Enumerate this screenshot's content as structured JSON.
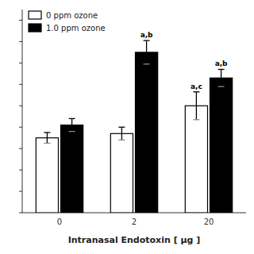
{
  "chart_data": {
    "type": "bar",
    "xlabel": "Intranasal Endotoxin [ μg ]",
    "categories": [
      "0",
      "2",
      "20"
    ],
    "series": [
      {
        "name": "0 ppm ozone",
        "color": "#ffffff",
        "values": [
          3.5,
          3.7,
          5.0
        ],
        "errors": [
          0.25,
          0.3,
          0.65
        ],
        "annotations": [
          null,
          null,
          "a,c"
        ]
      },
      {
        "name": "1.0 ppm ozone",
        "color": "#000000",
        "values": [
          4.1,
          7.5,
          6.3
        ],
        "errors": [
          0.3,
          0.55,
          0.4
        ],
        "annotations": [
          null,
          "a,b",
          "a,b"
        ]
      }
    ],
    "ylim": [
      0,
      9.5
    ],
    "yticks": [
      0,
      1,
      2,
      3,
      4,
      5,
      6,
      7,
      8,
      9
    ],
    "tick_labels": "x",
    "grid": false,
    "legend": "upper left"
  }
}
